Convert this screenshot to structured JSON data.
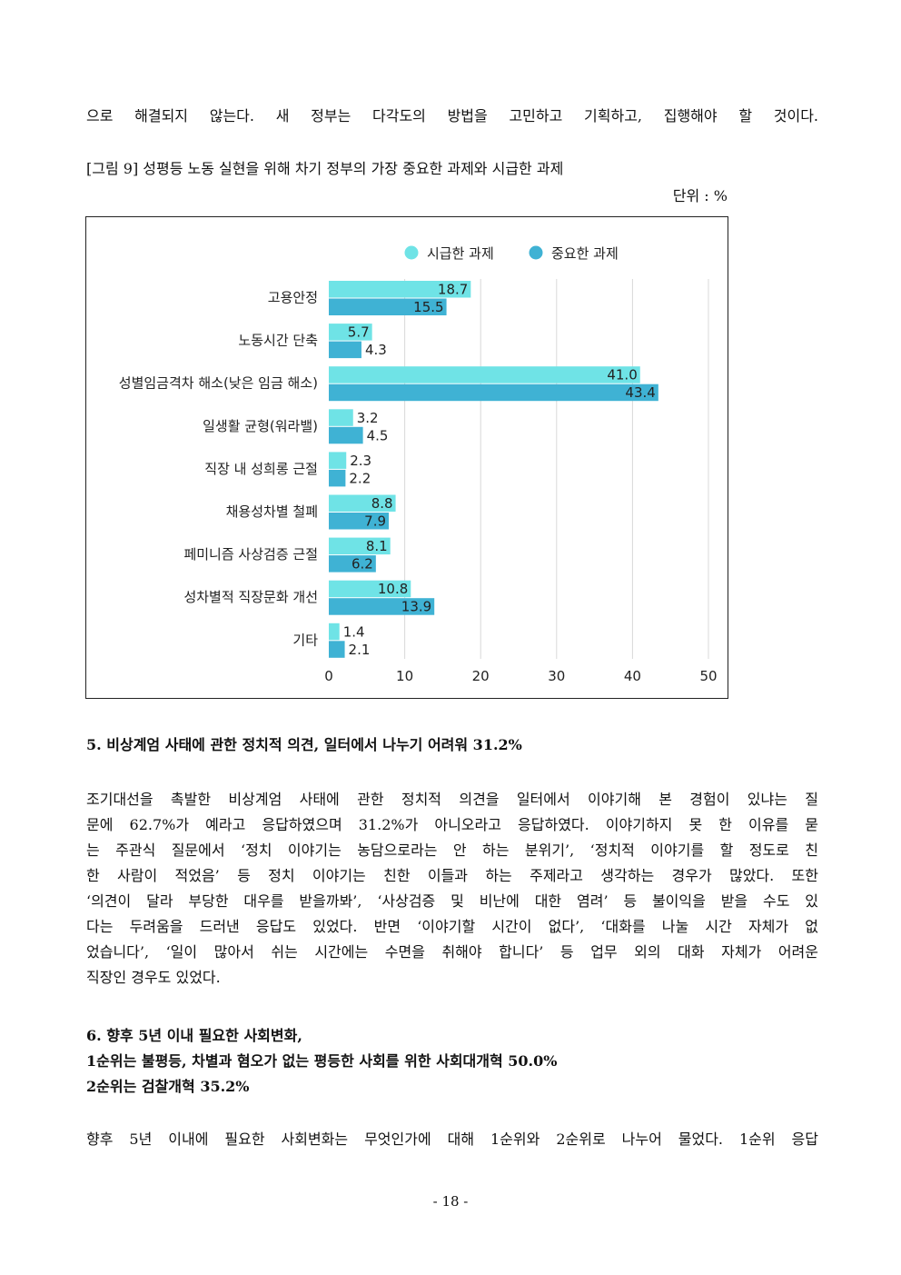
{
  "top_text": "으로 해결되지 않는다. 새 정부는 다각도의 방법을 고민하고 기획하고, 집행해야 할 것이다.",
  "figure": {
    "caption": "[그림 9] 성평등 노동 실현을 위해 차기 정부의 가장 중요한 과제와 시급한 과제",
    "unit": "단위 : %"
  },
  "colors": {
    "urgent": "#6fe3e6",
    "important": "#3fb2d4",
    "grid": "#d8d8d8"
  },
  "chart_data": {
    "type": "bar",
    "orientation": "horizontal",
    "categories": [
      "고용안정",
      "노동시간 단축",
      "성별임금격차 해소(낮은 임금 해소)",
      "일생활 균형(워라밸)",
      "직장 내 성희롱 근절",
      "채용성차별 철폐",
      "페미니즘 사상검증 근절",
      "성차별적 직장문화 개선",
      "기타"
    ],
    "series": [
      {
        "name": "시급한 과제",
        "values": [
          18.7,
          5.7,
          41.0,
          3.2,
          2.3,
          8.8,
          8.1,
          10.8,
          1.4
        ]
      },
      {
        "name": "중요한 과제",
        "values": [
          15.5,
          4.3,
          43.4,
          4.5,
          2.2,
          7.9,
          6.2,
          13.9,
          2.1
        ]
      }
    ],
    "xlim": [
      0,
      50
    ],
    "xticks": [
      "0",
      "10",
      "20",
      "30",
      "40",
      "50"
    ],
    "grid": true,
    "legend": "top"
  },
  "section5": {
    "heading": "5. 비상계엄 사태에 관한 정치적 의견, 일터에서 나누기 어려워 31.2%",
    "lines": [
      "조기대선을 촉발한 비상계엄 사태에 관한 정치적 의견을 일터에서 이야기해 본 경험이 있냐는 질",
      "문에 62.7%가 예라고 응답하였으며 31.2%가 아니오라고 응답하였다. 이야기하지 못 한 이유를 묻",
      "는 주관식 질문에서 ‘정치 이야기는 농담으로라는 안 하는 분위기’, ‘정치적 이야기를 할 정도로 친",
      "한 사람이 적었음’ 등 정치 이야기는 친한 이들과 하는 주제라고 생각하는 경우가 많았다. 또한",
      "‘의견이 달라 부당한 대우를 받을까봐’, ‘사상검증 및 비난에 대한 염려’ 등 불이익을 받을 수도 있",
      "다는 두려움을 드러낸 응답도 있었다. 반면 ‘이야기할 시간이 없다’, ‘대화를 나눌 시간 자체가 없",
      "었습니다’, ‘일이 많아서 쉬는 시간에는 수면을 취해야 합니다’ 등 업무 외의 대화 자체가 어려운",
      "직장인 경우도 있었다."
    ]
  },
  "section6": {
    "heading_lines": [
      "6. 향후 5년 이내 필요한 사회변화,",
      "1순위는 불평등, 차별과 혐오가 없는 평등한 사회를 위한 사회대개혁 50.0%",
      "2순위는 검찰개혁 35.2%"
    ],
    "line": "향후 5년 이내에 필요한 사회변화는 무엇인가에 대해 1순위와 2순위로 나누어 물었다. 1순위 응답"
  },
  "page_number": "- 18 -"
}
